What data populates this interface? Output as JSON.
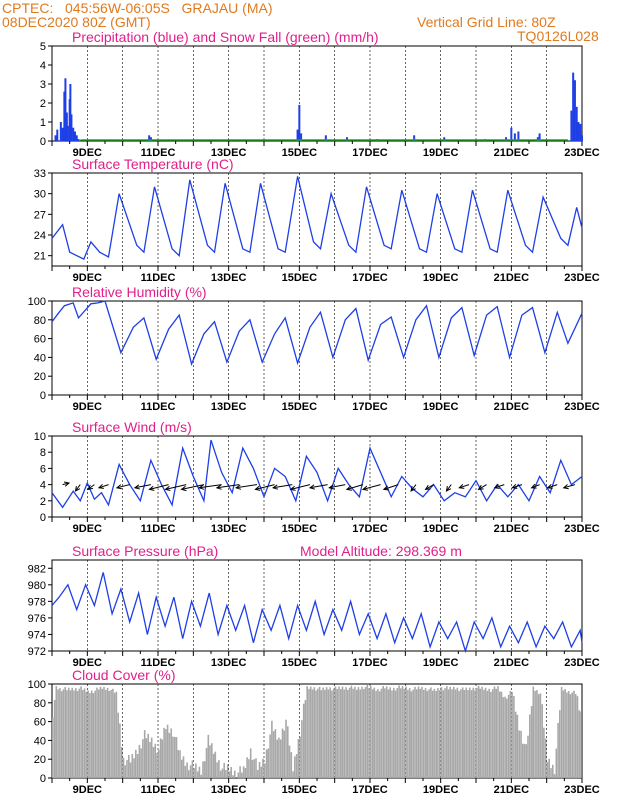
{
  "header": {
    "line1": "CPTEC:   045:56W-06:05S   GRAJAU (MA)",
    "line2": "08DEC2020 80Z (GMT)",
    "grid_note": "Vertical Grid Line: 80Z",
    "code": "TQ0126L028"
  },
  "colors": {
    "header": "#e07a1f",
    "title": "#e0208a",
    "series": "#1f3fe6",
    "snow": "#1aa81a",
    "cloud": "#a8a8a8",
    "arrows": "#000000"
  },
  "chart_data": [
    {
      "type": "bar",
      "title": "Precipitation (blue) and Snow Fall (green) (mm/h)",
      "ylim": [
        0,
        5
      ],
      "yticks": [
        "0",
        "1",
        "2",
        "3",
        "4",
        "5"
      ],
      "xticks": [
        "9DEC",
        "11DEC",
        "13DEC",
        "15DEC",
        "17DEC",
        "19DEC",
        "21DEC",
        "23DEC"
      ],
      "x_day_range": [
        8.0,
        23.0
      ],
      "series": [
        {
          "kind": "precipitation",
          "x": [
            8.1,
            8.15,
            8.25,
            8.3,
            8.35,
            8.38,
            8.42,
            8.45,
            8.5,
            8.52,
            8.55,
            8.6,
            8.65,
            8.7,
            8.75,
            10.75,
            10.8,
            14.95,
            15.0,
            15.05,
            15.75,
            16.35,
            17.2,
            18.25,
            19.1,
            20.25,
            20.85,
            21.0,
            21.1,
            21.2,
            21.75,
            21.8,
            22.7,
            22.75,
            22.8,
            22.85,
            22.9,
            22.95,
            23.0
          ],
          "values": [
            0.3,
            0.6,
            1.0,
            0.7,
            2.6,
            3.3,
            1.5,
            0.8,
            2.2,
            3.0,
            1.4,
            0.7,
            0.5,
            0.3,
            0.1,
            0.3,
            0.2,
            0.6,
            1.9,
            0.4,
            0.3,
            0.2,
            0.1,
            0.3,
            0.2,
            0.1,
            0.2,
            0.7,
            0.4,
            0.5,
            0.2,
            0.4,
            1.6,
            3.6,
            3.2,
            1.8,
            1.0,
            0.9,
            0.3
          ]
        },
        {
          "kind": "snowfall",
          "x": [],
          "values": []
        }
      ]
    },
    {
      "type": "line",
      "title": "Surface Temperature (nC)",
      "ylim": [
        19.5,
        33
      ],
      "yticks": [
        "21",
        "24",
        "27",
        "30",
        "33"
      ],
      "xticks": [
        "9DEC",
        "11DEC",
        "13DEC",
        "15DEC",
        "17DEC",
        "19DEC",
        "21DEC",
        "23DEC"
      ],
      "x_day_range": [
        8.0,
        23.0
      ],
      "x": [
        8.0,
        8.3,
        8.5,
        8.9,
        9.1,
        9.35,
        9.6,
        9.9,
        10.4,
        10.6,
        10.9,
        11.4,
        11.6,
        11.9,
        12.4,
        12.6,
        12.9,
        13.4,
        13.6,
        13.9,
        14.4,
        14.6,
        14.95,
        15.4,
        15.6,
        15.9,
        16.4,
        16.6,
        16.9,
        17.4,
        17.6,
        17.9,
        18.4,
        18.6,
        18.9,
        19.4,
        19.6,
        19.9,
        20.4,
        20.6,
        20.9,
        21.4,
        21.6,
        21.9,
        22.4,
        22.6,
        22.85,
        23.0
      ],
      "values": [
        23.5,
        25.5,
        21.5,
        20.5,
        23.0,
        21.5,
        20.8,
        30.0,
        22.5,
        21.5,
        31.0,
        22.0,
        21.0,
        32.0,
        22.5,
        21.5,
        31.5,
        22.0,
        21.5,
        31.5,
        22.0,
        21.5,
        32.5,
        23.0,
        22.0,
        30.0,
        22.5,
        21.5,
        31.0,
        22.5,
        22.0,
        30.5,
        22.0,
        21.5,
        30.0,
        22.0,
        21.5,
        30.5,
        22.0,
        21.5,
        30.5,
        22.5,
        21.5,
        29.5,
        23.5,
        22.5,
        28.0,
        25.0
      ]
    },
    {
      "type": "line",
      "title": "Relative Humidity (%)",
      "ylim": [
        0,
        100
      ],
      "yticks": [
        "0",
        "20",
        "40",
        "60",
        "80",
        "100"
      ],
      "xticks": [
        "9DEC",
        "11DEC",
        "13DEC",
        "15DEC",
        "17DEC",
        "19DEC",
        "21DEC",
        "23DEC"
      ],
      "x_day_range": [
        8.0,
        23.0
      ],
      "x": [
        8.0,
        8.2,
        8.35,
        8.6,
        8.75,
        9.1,
        9.3,
        9.5,
        9.95,
        10.3,
        10.6,
        10.95,
        11.3,
        11.6,
        11.95,
        12.3,
        12.6,
        12.95,
        13.3,
        13.6,
        13.95,
        14.3,
        14.6,
        14.95,
        15.3,
        15.6,
        15.95,
        16.3,
        16.6,
        16.95,
        17.3,
        17.6,
        17.95,
        18.3,
        18.6,
        18.95,
        19.3,
        19.6,
        19.95,
        20.3,
        20.6,
        20.95,
        21.3,
        21.6,
        21.95,
        22.3,
        22.6,
        23.0
      ],
      "values": [
        78,
        88,
        95,
        98,
        82,
        97,
        98,
        100,
        45,
        72,
        82,
        38,
        70,
        85,
        33,
        65,
        78,
        35,
        68,
        80,
        35,
        65,
        82,
        34,
        72,
        88,
        40,
        80,
        92,
        37,
        75,
        83,
        40,
        80,
        95,
        40,
        82,
        93,
        42,
        85,
        94,
        40,
        85,
        93,
        45,
        88,
        55,
        87
      ]
    },
    {
      "type": "line",
      "title": "Surface Wind (m/s)",
      "ylim": [
        0,
        10
      ],
      "yticks": [
        "0",
        "2",
        "4",
        "6",
        "8",
        "10"
      ],
      "xticks": [
        "9DEC",
        "11DEC",
        "13DEC",
        "15DEC",
        "17DEC",
        "19DEC",
        "21DEC",
        "23DEC"
      ],
      "x_day_range": [
        8.0,
        23.0
      ],
      "x": [
        8.0,
        8.3,
        8.6,
        8.8,
        9.0,
        9.2,
        9.4,
        9.6,
        9.9,
        10.2,
        10.5,
        10.8,
        11.1,
        11.4,
        11.7,
        12.0,
        12.3,
        12.5,
        12.8,
        13.1,
        13.4,
        13.7,
        14.0,
        14.3,
        14.6,
        14.9,
        15.2,
        15.5,
        15.8,
        16.1,
        16.4,
        16.7,
        17.0,
        17.3,
        17.6,
        17.9,
        18.2,
        18.5,
        18.8,
        19.1,
        19.4,
        19.7,
        20.0,
        20.3,
        20.6,
        20.9,
        21.2,
        21.5,
        21.8,
        22.1,
        22.4,
        22.7,
        23.0
      ],
      "values": [
        3.0,
        1.2,
        3.2,
        2.0,
        4.2,
        2.2,
        3.0,
        1.5,
        6.5,
        4.0,
        2.0,
        7.0,
        4.0,
        1.5,
        8.5,
        5.0,
        2.0,
        9.5,
        5.5,
        3.0,
        8.5,
        6.0,
        2.5,
        6.0,
        5.0,
        2.0,
        7.5,
        5.5,
        2.0,
        6.0,
        4.0,
        2.5,
        8.5,
        5.5,
        2.5,
        5.0,
        3.5,
        2.5,
        4.0,
        2.0,
        3.0,
        2.5,
        4.5,
        2.0,
        4.0,
        2.5,
        4.0,
        2.0,
        5.0,
        3.0,
        7.0,
        4.0,
        5.0
      ],
      "vectors": {
        "x": [
          8.3,
          8.8,
          9.2,
          9.6,
          10.2,
          10.8,
          11.3,
          11.8,
          12.3,
          12.8,
          13.3,
          13.8,
          14.3,
          14.8,
          15.3,
          15.8,
          16.3,
          16.8,
          17.3,
          17.8,
          18.3,
          18.8,
          19.3,
          19.8,
          20.3,
          20.8,
          21.3,
          21.8,
          22.3,
          22.8
        ],
        "u": [
          2.0,
          -1.5,
          -2.0,
          -3.0,
          -4.0,
          -5.0,
          -6.0,
          -6.5,
          -7.0,
          -7.0,
          -7.0,
          -6.5,
          -6.0,
          -6.0,
          -6.0,
          -5.5,
          -5.0,
          -5.0,
          -5.5,
          -4.5,
          -1.5,
          -2.5,
          -1.5,
          -3.0,
          -2.5,
          -3.0,
          -3.0,
          -2.5,
          -3.0,
          -3.5
        ],
        "v": [
          0.5,
          -2.0,
          -1.5,
          -1.0,
          -1.0,
          -1.0,
          -1.5,
          -1.5,
          -1.5,
          -1.0,
          -1.0,
          -1.0,
          -1.5,
          -1.0,
          -1.5,
          -1.0,
          -1.0,
          -1.5,
          -1.5,
          -1.5,
          -2.0,
          -1.5,
          -2.0,
          -1.0,
          -1.5,
          -1.0,
          -1.0,
          -1.0,
          -1.0,
          -1.0
        ]
      }
    },
    {
      "type": "line",
      "title": "Surface Pressure (hPa)",
      "annotation": "Model Altitude: 298.369 m",
      "ylim": [
        972,
        983
      ],
      "yticks": [
        "972",
        "974",
        "976",
        "978",
        "980",
        "982"
      ],
      "xticks": [
        "9DEC",
        "11DEC",
        "13DEC",
        "15DEC",
        "17DEC",
        "19DEC",
        "21DEC",
        "23DEC"
      ],
      "x_day_range": [
        8.0,
        23.0
      ],
      "x": [
        8.0,
        8.2,
        8.45,
        8.7,
        8.95,
        9.2,
        9.45,
        9.7,
        9.95,
        10.2,
        10.45,
        10.7,
        10.95,
        11.2,
        11.45,
        11.7,
        11.95,
        12.2,
        12.45,
        12.7,
        12.95,
        13.2,
        13.45,
        13.7,
        13.95,
        14.2,
        14.45,
        14.7,
        14.95,
        15.2,
        15.45,
        15.7,
        15.95,
        16.2,
        16.45,
        16.7,
        16.95,
        17.2,
        17.45,
        17.7,
        17.95,
        18.2,
        18.45,
        18.7,
        18.95,
        19.2,
        19.45,
        19.7,
        19.95,
        20.2,
        20.45,
        20.7,
        20.95,
        21.2,
        21.45,
        21.7,
        21.95,
        22.2,
        22.45,
        22.7,
        22.95,
        23.0
      ],
      "values": [
        977.5,
        978.5,
        980.0,
        977.0,
        980.0,
        977.5,
        981.5,
        976.5,
        979.5,
        975.5,
        979.0,
        974.0,
        978.5,
        975.0,
        978.5,
        973.5,
        978.0,
        975.0,
        979.0,
        974.0,
        977.5,
        974.5,
        977.5,
        973.0,
        977.0,
        974.5,
        977.5,
        973.5,
        977.5,
        974.5,
        978.0,
        974.0,
        977.0,
        974.5,
        978.0,
        974.0,
        976.5,
        973.5,
        976.5,
        973.0,
        976.0,
        973.5,
        976.5,
        972.5,
        975.5,
        973.5,
        975.5,
        972.0,
        975.5,
        973.5,
        976.0,
        972.5,
        975.0,
        973.0,
        975.5,
        972.5,
        975.0,
        973.5,
        975.5,
        972.5,
        974.5,
        973.0
      ]
    },
    {
      "type": "area",
      "title": "Cloud Cover (%)",
      "ylim": [
        0,
        100
      ],
      "yticks": [
        "0",
        "20",
        "40",
        "60",
        "80",
        "100"
      ],
      "xticks": [
        "9DEC",
        "11DEC",
        "13DEC",
        "15DEC",
        "17DEC",
        "19DEC",
        "21DEC",
        "23DEC"
      ],
      "x_day_range": [
        8.0,
        23.0
      ],
      "x": [
        8.0,
        8.1,
        8.2,
        8.4,
        8.6,
        8.8,
        9.0,
        9.2,
        9.4,
        9.6,
        9.8,
        10.0,
        10.2,
        10.4,
        10.6,
        10.8,
        11.0,
        11.2,
        11.4,
        11.6,
        11.8,
        12.0,
        12.2,
        12.4,
        12.6,
        12.8,
        13.0,
        13.2,
        13.4,
        13.6,
        13.8,
        14.0,
        14.2,
        14.4,
        14.6,
        14.8,
        15.0,
        15.2,
        15.4,
        15.6,
        15.8,
        16.0,
        16.2,
        16.4,
        16.6,
        16.8,
        17.0,
        17.2,
        17.4,
        17.6,
        17.8,
        18.0,
        18.2,
        18.4,
        18.6,
        18.8,
        19.0,
        19.2,
        19.4,
        19.6,
        19.8,
        20.0,
        20.2,
        20.4,
        20.6,
        20.8,
        21.0,
        21.2,
        21.4,
        21.6,
        21.8,
        22.0,
        22.2,
        22.4,
        22.6,
        22.8,
        23.0
      ],
      "values": [
        70,
        96,
        95,
        94,
        95,
        95,
        92,
        93,
        96,
        95,
        90,
        20,
        18,
        30,
        45,
        40,
        30,
        55,
        50,
        25,
        15,
        12,
        8,
        40,
        25,
        10,
        10,
        5,
        8,
        30,
        10,
        20,
        55,
        40,
        62,
        10,
        50,
        96,
        96,
        94,
        96,
        95,
        96,
        96,
        95,
        97,
        96,
        94,
        96,
        95,
        96,
        96,
        94,
        96,
        95,
        93,
        96,
        95,
        96,
        94,
        95,
        96,
        95,
        94,
        96,
        85,
        92,
        55,
        30,
        96,
        90,
        20,
        10,
        95,
        92,
        90,
        60
      ]
    }
  ]
}
